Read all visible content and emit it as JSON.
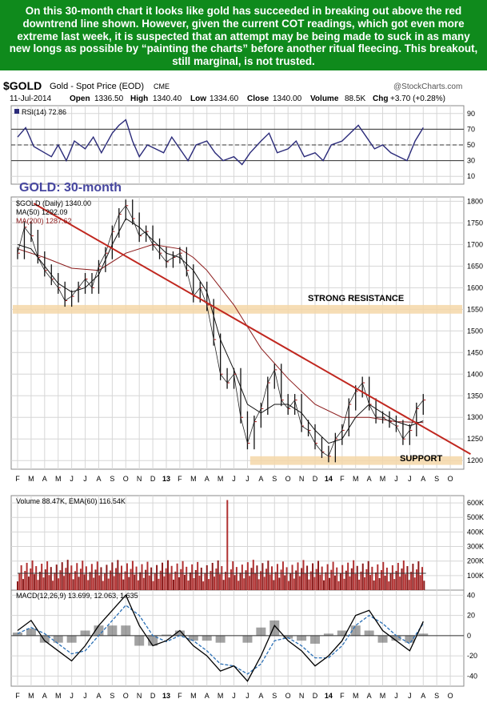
{
  "banner": {
    "text": "On this 30-month chart it looks like gold has succeeded in breaking out above the red downtrend line shown. However, given the current COT readings, which got even more extreme last week, it is suspected that an attempt may be being made to suck in as many new longs as possible by “painting the charts” before another ritual fleecing. This breakout, still marginal, is not trusted."
  },
  "header": {
    "symbol": "$GOLD",
    "name": "Gold - Spot Price (EOD)",
    "exchange": "CME",
    "watermark": "@StockCharts.com",
    "date": "11-Jul-2014",
    "open_label": "Open",
    "open": "1336.50",
    "high_label": "High",
    "high": "1340.40",
    "low_label": "Low",
    "low": "1334.60",
    "close_label": "Close",
    "close": "1340.00",
    "volume_label": "Volume",
    "volume": "88.5K",
    "chg_label": "Chg",
    "chg": "+3.70 (+0.28%)"
  },
  "chart_data": {
    "type": "line",
    "title": "GOLD: 30-month",
    "x_months": [
      "F",
      "M",
      "A",
      "M",
      "J",
      "J",
      "A",
      "S",
      "O",
      "N",
      "D",
      "13",
      "F",
      "M",
      "A",
      "M",
      "J",
      "J",
      "A",
      "S",
      "O",
      "N",
      "D",
      "14",
      "F",
      "M",
      "A",
      "M",
      "J",
      "J",
      "A",
      "S",
      "O"
    ],
    "price_panel": {
      "legend_price": "$GOLD (Daily) 1340.00",
      "legend_ma50": "MA(50) 1292.09",
      "legend_ma200": "MA(200) 1287.62",
      "yticks": [
        "1800",
        "1750",
        "1700",
        "1650",
        "1600",
        "1550",
        "1500",
        "1450",
        "1400",
        "1350",
        "1300",
        "1250",
        "1200"
      ],
      "ylim": [
        1180,
        1810
      ],
      "annotations": {
        "resistance": "STRONG RESISTANCE",
        "support": "SUPPORT"
      },
      "resistance_band": [
        1540,
        1560
      ],
      "support_band": [
        1190,
        1210
      ],
      "trendline": {
        "start": [
          1.2,
          1795
        ],
        "end": [
          33.5,
          1215
        ]
      },
      "series_price": [
        [
          0,
          1680
        ],
        [
          0.5,
          1740
        ],
        [
          1,
          1720
        ],
        [
          1.5,
          1670
        ],
        [
          2,
          1640
        ],
        [
          2.5,
          1620
        ],
        [
          3,
          1600
        ],
        [
          3.5,
          1570
        ],
        [
          4,
          1580
        ],
        [
          4.5,
          1600
        ],
        [
          5,
          1620
        ],
        [
          5.5,
          1600
        ],
        [
          6,
          1650
        ],
        [
          6.5,
          1680
        ],
        [
          7,
          1730
        ],
        [
          7.5,
          1770
        ],
        [
          8,
          1790
        ],
        [
          8.5,
          1760
        ],
        [
          9,
          1720
        ],
        [
          9.5,
          1730
        ],
        [
          10,
          1700
        ],
        [
          10.5,
          1680
        ],
        [
          11,
          1660
        ],
        [
          11.5,
          1670
        ],
        [
          12,
          1680
        ],
        [
          12.5,
          1640
        ],
        [
          13,
          1580
        ],
        [
          13.5,
          1600
        ],
        [
          14,
          1560
        ],
        [
          14.5,
          1480
        ],
        [
          15,
          1400
        ],
        [
          15.5,
          1380
        ],
        [
          16,
          1400
        ],
        [
          16.5,
          1300
        ],
        [
          17,
          1240
        ],
        [
          17.5,
          1290
        ],
        [
          18,
          1320
        ],
        [
          18.5,
          1380
        ],
        [
          19,
          1410
        ],
        [
          19.5,
          1340
        ],
        [
          20,
          1320
        ],
        [
          20.5,
          1340
        ],
        [
          21,
          1280
        ],
        [
          21.5,
          1270
        ],
        [
          22,
          1240
        ],
        [
          22.5,
          1220
        ],
        [
          23,
          1210
        ],
        [
          23.5,
          1250
        ],
        [
          24,
          1270
        ],
        [
          24.5,
          1330
        ],
        [
          25,
          1360
        ],
        [
          25.5,
          1380
        ],
        [
          26,
          1330
        ],
        [
          26.5,
          1300
        ],
        [
          27,
          1300
        ],
        [
          27.5,
          1290
        ],
        [
          28,
          1280
        ],
        [
          28.5,
          1250
        ],
        [
          29,
          1270
        ],
        [
          29.5,
          1320
        ],
        [
          30,
          1340
        ]
      ],
      "series_ma50": [
        [
          0,
          1700
        ],
        [
          1,
          1690
        ],
        [
          2,
          1650
        ],
        [
          3,
          1610
        ],
        [
          4,
          1590
        ],
        [
          5,
          1600
        ],
        [
          6,
          1630
        ],
        [
          7,
          1700
        ],
        [
          8,
          1760
        ],
        [
          9,
          1740
        ],
        [
          10,
          1710
        ],
        [
          11,
          1680
        ],
        [
          12,
          1670
        ],
        [
          13,
          1640
        ],
        [
          14,
          1590
        ],
        [
          15,
          1480
        ],
        [
          16,
          1410
        ],
        [
          17,
          1330
        ],
        [
          18,
          1310
        ],
        [
          19,
          1330
        ],
        [
          20,
          1330
        ],
        [
          21,
          1310
        ],
        [
          22,
          1270
        ],
        [
          23,
          1240
        ],
        [
          24,
          1250
        ],
        [
          25,
          1300
        ],
        [
          26,
          1330
        ],
        [
          27,
          1310
        ],
        [
          28,
          1290
        ],
        [
          29,
          1280
        ],
        [
          30,
          1292
        ]
      ],
      "series_ma200": [
        [
          0,
          1690
        ],
        [
          2,
          1670
        ],
        [
          4,
          1645
        ],
        [
          6,
          1640
        ],
        [
          8,
          1680
        ],
        [
          10,
          1700
        ],
        [
          12,
          1690
        ],
        [
          13,
          1670
        ],
        [
          14,
          1640
        ],
        [
          16,
          1560
        ],
        [
          18,
          1460
        ],
        [
          20,
          1390
        ],
        [
          22,
          1330
        ],
        [
          24,
          1300
        ],
        [
          26,
          1300
        ],
        [
          28,
          1290
        ],
        [
          30,
          1288
        ]
      ]
    },
    "rsi_panel": {
      "legend": "RSI(14) 72.86",
      "yticks": [
        "90",
        "70",
        "50",
        "30",
        "10"
      ],
      "ylim": [
        0,
        100
      ],
      "series": [
        [
          0,
          60
        ],
        [
          0.6,
          72
        ],
        [
          1.2,
          48
        ],
        [
          2,
          40
        ],
        [
          2.5,
          35
        ],
        [
          3,
          50
        ],
        [
          3.6,
          30
        ],
        [
          4.2,
          55
        ],
        [
          5,
          45
        ],
        [
          5.6,
          60
        ],
        [
          6.2,
          40
        ],
        [
          7,
          65
        ],
        [
          7.5,
          75
        ],
        [
          8,
          82
        ],
        [
          8.5,
          55
        ],
        [
          9,
          35
        ],
        [
          9.6,
          50
        ],
        [
          10.2,
          45
        ],
        [
          10.8,
          40
        ],
        [
          11.4,
          60
        ],
        [
          12,
          45
        ],
        [
          12.6,
          30
        ],
        [
          13.2,
          50
        ],
        [
          14,
          55
        ],
        [
          14.6,
          40
        ],
        [
          15.2,
          30
        ],
        [
          16,
          35
        ],
        [
          16.6,
          25
        ],
        [
          17.2,
          40
        ],
        [
          18,
          55
        ],
        [
          18.6,
          65
        ],
        [
          19.2,
          40
        ],
        [
          20,
          45
        ],
        [
          20.6,
          55
        ],
        [
          21.2,
          35
        ],
        [
          22,
          40
        ],
        [
          22.6,
          30
        ],
        [
          23.2,
          50
        ],
        [
          24,
          55
        ],
        [
          24.6,
          65
        ],
        [
          25.2,
          75
        ],
        [
          25.8,
          60
        ],
        [
          26.4,
          45
        ],
        [
          27,
          50
        ],
        [
          27.6,
          40
        ],
        [
          28.2,
          35
        ],
        [
          28.8,
          30
        ],
        [
          29.4,
          55
        ],
        [
          30,
          72
        ]
      ]
    },
    "volume_panel": {
      "legend": "Volume 88.47K, EMA(60) 116.54K",
      "yticks": [
        "600K",
        "500K",
        "400K",
        "300K",
        "200K",
        "100K"
      ],
      "ylim": [
        0,
        650
      ],
      "spike_month": 15.5,
      "spike_value": 620,
      "typical_range": [
        60,
        210
      ]
    },
    "macd_panel": {
      "legend": "MACD(12,26,9) 13.699, 12.063, 1.635",
      "yticks": [
        "40",
        "20",
        "0",
        "-20",
        "-40"
      ],
      "ylim": [
        -50,
        45
      ],
      "macd": [
        [
          0,
          5
        ],
        [
          1,
          15
        ],
        [
          2,
          -5
        ],
        [
          3,
          -15
        ],
        [
          4,
          -25
        ],
        [
          5,
          -10
        ],
        [
          6,
          10
        ],
        [
          7,
          25
        ],
        [
          8,
          40
        ],
        [
          9,
          10
        ],
        [
          10,
          -10
        ],
        [
          11,
          -5
        ],
        [
          12,
          5
        ],
        [
          13,
          -10
        ],
        [
          14,
          -20
        ],
        [
          15,
          -35
        ],
        [
          16,
          -30
        ],
        [
          17,
          -45
        ],
        [
          18,
          -20
        ],
        [
          19,
          10
        ],
        [
          20,
          -5
        ],
        [
          21,
          -15
        ],
        [
          22,
          -30
        ],
        [
          23,
          -20
        ],
        [
          24,
          -5
        ],
        [
          25,
          20
        ],
        [
          26,
          25
        ],
        [
          27,
          5
        ],
        [
          28,
          -5
        ],
        [
          29,
          -15
        ],
        [
          30,
          14
        ]
      ],
      "signal": [
        [
          0,
          2
        ],
        [
          1,
          8
        ],
        [
          2,
          2
        ],
        [
          3,
          -8
        ],
        [
          4,
          -18
        ],
        [
          5,
          -15
        ],
        [
          6,
          0
        ],
        [
          7,
          15
        ],
        [
          8,
          30
        ],
        [
          9,
          20
        ],
        [
          10,
          0
        ],
        [
          11,
          -6
        ],
        [
          12,
          0
        ],
        [
          13,
          -5
        ],
        [
          14,
          -15
        ],
        [
          15,
          -28
        ],
        [
          16,
          -30
        ],
        [
          17,
          -38
        ],
        [
          18,
          -28
        ],
        [
          19,
          -5
        ],
        [
          20,
          -2
        ],
        [
          21,
          -10
        ],
        [
          22,
          -22
        ],
        [
          23,
          -22
        ],
        [
          24,
          -10
        ],
        [
          25,
          10
        ],
        [
          26,
          20
        ],
        [
          27,
          12
        ],
        [
          28,
          0
        ],
        [
          29,
          -8
        ],
        [
          30,
          12
        ]
      ]
    }
  }
}
